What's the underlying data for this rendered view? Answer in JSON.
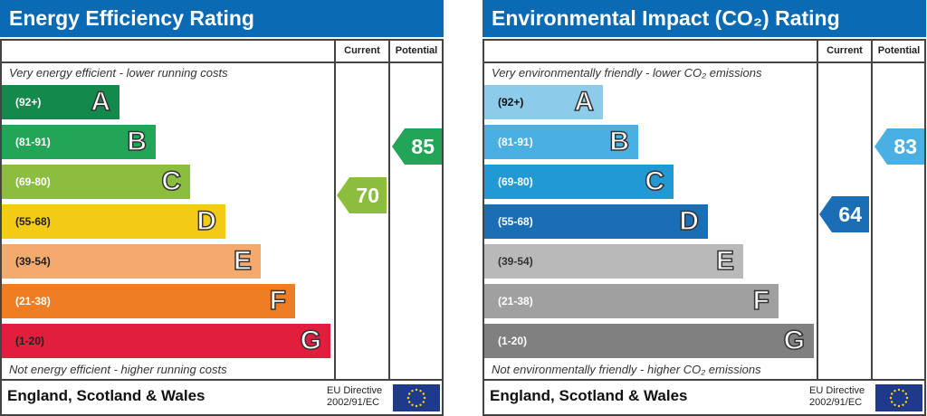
{
  "chart_data": [
    {
      "type": "bar",
      "title": "Energy Efficiency Rating",
      "columns": [
        "Current",
        "Potential"
      ],
      "caption_top": "Very energy efficient - lower running costs",
      "caption_bottom": "Not energy efficient - higher running costs",
      "bands": [
        {
          "letter": "A",
          "range": "(92+)",
          "color": "#138a4b",
          "text": "#fff"
        },
        {
          "letter": "B",
          "range": "(81-91)",
          "color": "#23a557",
          "text": "#fff"
        },
        {
          "letter": "C",
          "range": "(69-80)",
          "color": "#8cbd3f",
          "text": "#fff"
        },
        {
          "letter": "D",
          "range": "(55-68)",
          "color": "#f4cb14",
          "text": "#222"
        },
        {
          "letter": "E",
          "range": "(39-54)",
          "color": "#f3aa6c",
          "text": "#222"
        },
        {
          "letter": "F",
          "range": "(21-38)",
          "color": "#ee7d23",
          "text": "#fff"
        },
        {
          "letter": "G",
          "range": "(1-20)",
          "color": "#e11e3c",
          "text": "#222"
        }
      ],
      "current": {
        "value": "70",
        "band": "C"
      },
      "potential": {
        "value": "85",
        "band": "B"
      },
      "footer": "England, Scotland & Wales",
      "directive": [
        "EU Directive",
        "2002/91/EC"
      ]
    },
    {
      "type": "bar",
      "title": "Environmental Impact (CO₂) Rating",
      "columns": [
        "Current",
        "Potential"
      ],
      "caption_top": "Very environmentally friendly - lower CO₂ emissions",
      "caption_bottom": "Not environmentally friendly - higher CO₂ emissions",
      "bands": [
        {
          "letter": "A",
          "range": "(92+)",
          "color": "#8ccbea",
          "text": "#111"
        },
        {
          "letter": "B",
          "range": "(81-91)",
          "color": "#4ab0e2",
          "text": "#fff"
        },
        {
          "letter": "C",
          "range": "(69-80)",
          "color": "#2199d5",
          "text": "#fff"
        },
        {
          "letter": "D",
          "range": "(55-68)",
          "color": "#1a6eb6",
          "text": "#fff"
        },
        {
          "letter": "E",
          "range": "(39-54)",
          "color": "#b9b9b9",
          "text": "#333"
        },
        {
          "letter": "F",
          "range": "(21-38)",
          "color": "#a0a0a0",
          "text": "#fff"
        },
        {
          "letter": "G",
          "range": "(1-20)",
          "color": "#808080",
          "text": "#fff"
        }
      ],
      "current": {
        "value": "64",
        "band": "D"
      },
      "potential": {
        "value": "83",
        "band": "B"
      },
      "footer": "England, Scotland & Wales",
      "directive": [
        "EU Directive",
        "2002/91/EC"
      ]
    }
  ]
}
